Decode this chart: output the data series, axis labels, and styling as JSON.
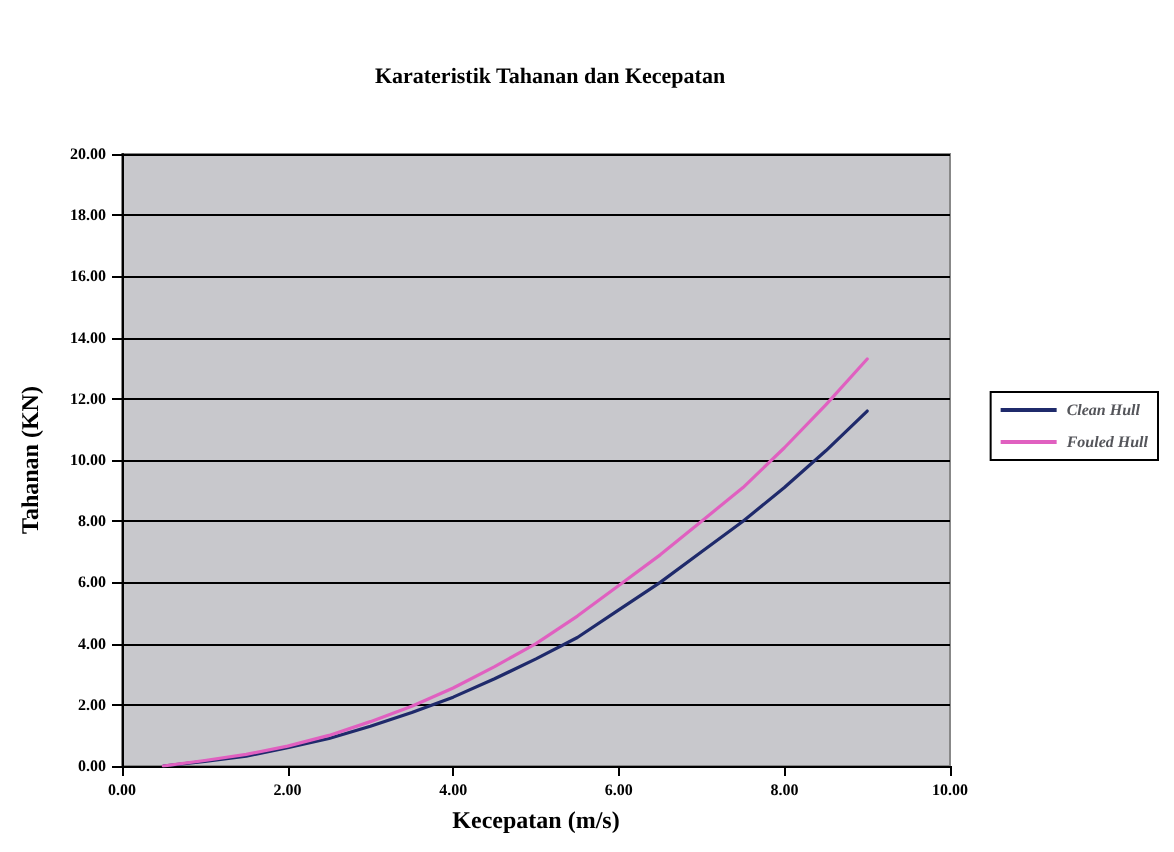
{
  "chart_data": {
    "type": "line",
    "title": "Karateristik Tahanan dan Kecepatan",
    "xlabel": "Kecepatan (m/s)",
    "ylabel": "Tahanan (KN)",
    "x": [
      0.5,
      1,
      1.5,
      2,
      2.5,
      3,
      3.5,
      4,
      4.5,
      5,
      5.5,
      6,
      6.5,
      7,
      7.5,
      8,
      8.5,
      9
    ],
    "series": [
      {
        "name": "Clean Hull",
        "color": "#1f2a6b",
        "values": [
          0.0,
          0.15,
          0.32,
          0.6,
          0.9,
          1.3,
          1.75,
          2.25,
          2.85,
          3.5,
          4.2,
          5.1,
          6.0,
          7.0,
          8.0,
          9.1,
          10.3,
          11.6
        ]
      },
      {
        "name": "Fouled Hull",
        "color": "#e060c0",
        "values": [
          0.0,
          0.18,
          0.38,
          0.65,
          1.0,
          1.45,
          1.95,
          2.55,
          3.25,
          4.0,
          4.9,
          5.9,
          6.9,
          8.0,
          9.1,
          10.4,
          11.8,
          13.3
        ]
      }
    ],
    "xlim": [
      0,
      10
    ],
    "xticks": [
      {
        "value": 0,
        "label": "0.00"
      },
      {
        "value": 2,
        "label": "2.00"
      },
      {
        "value": 4,
        "label": "4.00"
      },
      {
        "value": 6,
        "label": "6.00"
      },
      {
        "value": 8,
        "label": "8.00"
      },
      {
        "value": 10,
        "label": "10.00"
      }
    ],
    "ylim": [
      0,
      20
    ],
    "yticks": [
      {
        "value": 0,
        "label": "0.00"
      },
      {
        "value": 2,
        "label": "2.00"
      },
      {
        "value": 4,
        "label": "4.00"
      },
      {
        "value": 6,
        "label": "6.00"
      },
      {
        "value": 8,
        "label": "8.00"
      },
      {
        "value": 10,
        "label": "10.00"
      },
      {
        "value": 12,
        "label": "12.00"
      },
      {
        "value": 14,
        "label": "14.00"
      },
      {
        "value": 16,
        "label": "16.00"
      },
      {
        "value": 18,
        "label": "18.00"
      },
      {
        "value": 20,
        "label": "20.00"
      }
    ],
    "grid": "y",
    "legend": "right",
    "marker": "none",
    "line_style": "solid"
  }
}
